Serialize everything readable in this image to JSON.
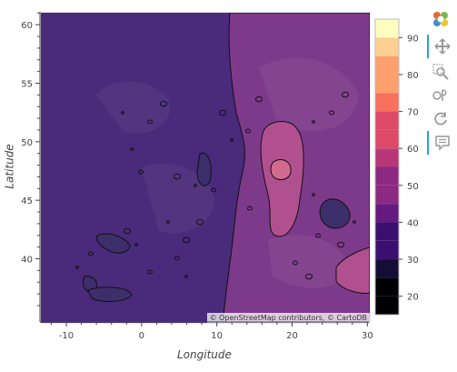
{
  "map": {
    "attribution": "© OpenStreetMap contributors, © CartoDB",
    "lon_range": [
      -13.5,
      30.2
    ],
    "lat_range": [
      34.6,
      61.1
    ]
  },
  "axes": {
    "xlabel": "Longitude",
    "ylabel": "Latitude",
    "xticks": [
      {
        "value": -10,
        "label": "-10"
      },
      {
        "value": 0,
        "label": "0"
      },
      {
        "value": 10,
        "label": "10"
      },
      {
        "value": 20,
        "label": "20"
      },
      {
        "value": 30,
        "label": "30"
      }
    ],
    "yticks": [
      {
        "value": 40,
        "label": "40"
      },
      {
        "value": 45,
        "label": "45"
      },
      {
        "value": 50,
        "label": "50"
      },
      {
        "value": 55,
        "label": "55"
      },
      {
        "value": 60,
        "label": "60"
      }
    ]
  },
  "colorbar": {
    "levels": [
      15,
      20,
      25,
      30,
      35,
      40,
      45,
      50,
      55,
      60,
      65,
      70,
      75,
      80,
      85,
      90,
      95
    ],
    "colors": [
      "#000004",
      "#140e36",
      "#3b0f70",
      "#641a80",
      "#8c2981",
      "#b73779",
      "#de4968",
      "#f7705c",
      "#fe9f6d",
      "#fecf92",
      "#fcfdbf"
    ],
    "tick_values": [
      20,
      30,
      40,
      50,
      60,
      70,
      80,
      90
    ],
    "tick_labels": [
      "20",
      "30",
      "40",
      "50",
      "60",
      "70",
      "80",
      "90"
    ]
  },
  "regions": {
    "base_color": "#4a2a7a",
    "east_color": "#7e3a8a",
    "hot_color": "#b1508f",
    "peak_color": "#d06a8e"
  },
  "toolbar": {
    "icons": [
      {
        "name": "bokeh-logo-icon",
        "active": false
      },
      {
        "name": "pan-icon",
        "active": true
      },
      {
        "name": "box-zoom-icon",
        "active": false
      },
      {
        "name": "wheel-zoom-icon",
        "active": false
      },
      {
        "name": "reset-icon",
        "active": false
      },
      {
        "name": "hover-icon",
        "active": true
      }
    ]
  }
}
